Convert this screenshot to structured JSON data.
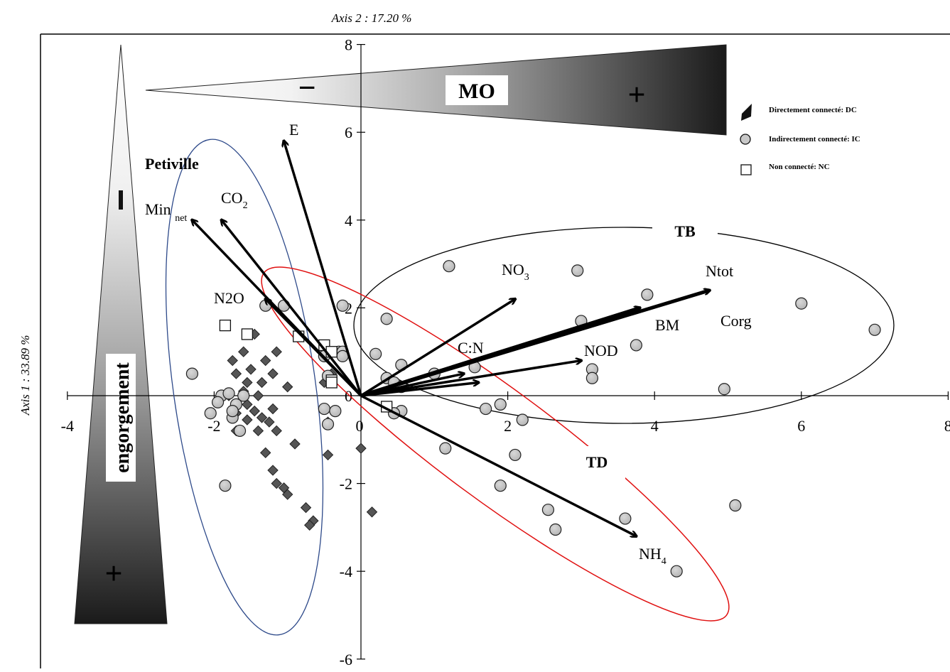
{
  "chart_data": {
    "type": "scatter",
    "title": "",
    "xlabel": "Axis 2 : 17.20 %",
    "ylabel": "Axis 1 : 33.89 %",
    "xlim": [
      -4,
      8
    ],
    "ylim": [
      -6,
      8
    ],
    "xticks": [
      "-4",
      "-2",
      "0",
      "2",
      "4",
      "6",
      "8"
    ],
    "yticks": [
      "8",
      "6",
      "4",
      "2",
      "0",
      "-2",
      "-4",
      "-6"
    ],
    "grid": false,
    "legend_position": "top-right",
    "legend": [
      {
        "text": "Directement connecté: ",
        "bold": "DC",
        "marker": "diamond"
      },
      {
        "text": "Indirectement connecté: ",
        "bold": "IC",
        "marker": "circle"
      },
      {
        "text": "Non connecté: ",
        "bold": "NC",
        "marker": "square"
      }
    ],
    "vectors": [
      {
        "name": "E",
        "x": -1.05,
        "y": 5.8
      },
      {
        "name": "CO2",
        "x": -1.9,
        "y": 4.0
      },
      {
        "name": "Min net",
        "x": -2.3,
        "y": 4.0
      },
      {
        "name": "N2O",
        "x": -1.3,
        "y": 2.2
      },
      {
        "name": "NO3",
        "x": 2.1,
        "y": 2.2
      },
      {
        "name": "Ntot",
        "x": 4.75,
        "y": 2.4
      },
      {
        "name": "BM",
        "x": 3.8,
        "y": 2.0
      },
      {
        "name": "NOD",
        "x": 3.0,
        "y": 0.8
      },
      {
        "name": "C:N",
        "x": 1.4,
        "y": 0.5
      },
      {
        "name": "Corg",
        "x": 1.6,
        "y": 0.3
      },
      {
        "name": "NH4",
        "x": 3.75,
        "y": -3.2
      }
    ],
    "vector_labels": {
      "E": "E",
      "CO2": "CO",
      "CO2_sub": "2",
      "Min": "Min ",
      "Min_sub": "net",
      "N2O": "N2O",
      "NO3": "NO",
      "NO3_sub": "3",
      "Ntot": "Ntot",
      "BM": "BM",
      "NOD": "NOD",
      "CN": "C:N",
      "Corg": "Corg",
      "NH4": "NH",
      "NH4_sub": "4"
    },
    "groups": {
      "petiville": "Petiville",
      "TB": "TB",
      "TD": "TD",
      "MO": "MO",
      "engorgement": "engorgement",
      "minus": "−",
      "plus": "+"
    },
    "series": [
      {
        "name": "DC",
        "marker": "diamond",
        "points": [
          [
            -1.45,
            1.4
          ],
          [
            -1.15,
            1.0
          ],
          [
            -1.6,
            1.0
          ],
          [
            -1.75,
            0.8
          ],
          [
            -1.3,
            0.8
          ],
          [
            -1.5,
            0.6
          ],
          [
            -1.7,
            0.5
          ],
          [
            -1.2,
            0.5
          ],
          [
            -0.4,
            0.5
          ],
          [
            -1.55,
            0.3
          ],
          [
            -1.35,
            0.3
          ],
          [
            -1.0,
            0.2
          ],
          [
            -0.5,
            0.3
          ],
          [
            -1.6,
            0.1
          ],
          [
            -1.8,
            0.0
          ],
          [
            -1.4,
            0.0
          ],
          [
            -1.55,
            -0.2
          ],
          [
            -1.2,
            -0.3
          ],
          [
            -1.45,
            -0.35
          ],
          [
            -1.7,
            -0.4
          ],
          [
            -1.35,
            -0.5
          ],
          [
            -1.55,
            -0.55
          ],
          [
            -1.25,
            -0.6
          ],
          [
            -1.7,
            -0.8
          ],
          [
            -1.4,
            -0.8
          ],
          [
            -1.15,
            -0.8
          ],
          [
            -0.45,
            -0.6
          ],
          [
            -0.9,
            -1.1
          ],
          [
            -1.3,
            -1.3
          ],
          [
            -0.45,
            -1.35
          ],
          [
            -1.2,
            -1.7
          ],
          [
            -1.15,
            -2.0
          ],
          [
            -1.05,
            -2.1
          ],
          [
            -1.0,
            -2.25
          ],
          [
            -0.75,
            -2.55
          ],
          [
            -0.65,
            -2.85
          ],
          [
            -0.7,
            -2.95
          ],
          [
            0.0,
            -1.2
          ],
          [
            0.15,
            -2.65
          ]
        ]
      },
      {
        "name": "IC",
        "marker": "circle",
        "points": [
          [
            -2.3,
            0.5
          ],
          [
            -1.9,
            0.0
          ],
          [
            -1.8,
            0.05
          ],
          [
            -1.6,
            0.0
          ],
          [
            -1.95,
            -0.15
          ],
          [
            -1.7,
            -0.2
          ],
          [
            -1.75,
            -0.5
          ],
          [
            -1.65,
            -0.8
          ],
          [
            -2.05,
            -0.4
          ],
          [
            -1.75,
            -0.35
          ],
          [
            -1.85,
            -2.05
          ],
          [
            -1.3,
            2.05
          ],
          [
            -1.05,
            2.05
          ],
          [
            -0.25,
            2.05
          ],
          [
            -0.5,
            0.9
          ],
          [
            -0.3,
            1.0
          ],
          [
            -0.25,
            1.0
          ],
          [
            -0.25,
            0.9
          ],
          [
            -0.45,
            0.45
          ],
          [
            -0.5,
            -0.3
          ],
          [
            -0.35,
            -0.35
          ],
          [
            -0.45,
            -0.65
          ],
          [
            1.2,
            2.95
          ],
          [
            2.95,
            2.85
          ],
          [
            3.9,
            2.3
          ],
          [
            6.0,
            2.1
          ],
          [
            7.0,
            1.5
          ],
          [
            0.35,
            1.75
          ],
          [
            3.0,
            1.7
          ],
          [
            3.75,
            1.15
          ],
          [
            0.2,
            0.95
          ],
          [
            0.55,
            0.7
          ],
          [
            1.55,
            0.65
          ],
          [
            3.15,
            0.6
          ],
          [
            3.15,
            0.4
          ],
          [
            1.0,
            0.5
          ],
          [
            0.35,
            0.4
          ],
          [
            0.45,
            0.3
          ],
          [
            0.55,
            0.2
          ],
          [
            4.95,
            0.15
          ],
          [
            1.9,
            -0.2
          ],
          [
            1.7,
            -0.3
          ],
          [
            0.55,
            -0.35
          ],
          [
            0.45,
            -0.4
          ],
          [
            2.2,
            -0.55
          ],
          [
            1.15,
            -1.2
          ],
          [
            2.1,
            -1.35
          ],
          [
            1.9,
            -2.05
          ],
          [
            2.55,
            -2.6
          ],
          [
            2.65,
            -3.05
          ],
          [
            3.6,
            -2.8
          ],
          [
            5.1,
            -2.5
          ],
          [
            4.3,
            -4.0
          ]
        ]
      },
      {
        "name": "NC",
        "marker": "square",
        "points": [
          [
            -1.85,
            1.6
          ],
          [
            -1.55,
            1.4
          ],
          [
            -0.85,
            1.35
          ],
          [
            -0.5,
            1.15
          ],
          [
            -0.4,
            1.0
          ],
          [
            -0.4,
            0.35
          ],
          [
            -0.4,
            0.3
          ],
          [
            0.35,
            -0.25
          ]
        ]
      }
    ]
  }
}
